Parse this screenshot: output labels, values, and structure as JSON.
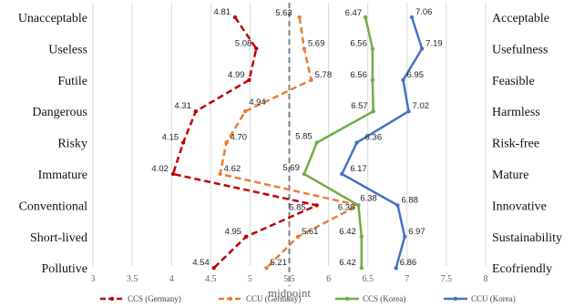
{
  "chart_data": {
    "type": "line",
    "orientation": "horizontal-values",
    "left_categories": [
      "Unacceptable",
      "Useless",
      "Futile",
      "Dangerous",
      "Risky",
      "Immature",
      "Conventional",
      "Short-lived",
      "Pollutive"
    ],
    "right_categories": [
      "Acceptable",
      "Usefulness",
      "Feasible",
      "Harmless",
      "Risk-free",
      "Mature",
      "Innovative",
      "Sustainability",
      "Ecofriendly"
    ],
    "xlim": [
      3,
      8
    ],
    "xticks": [
      "3",
      "3.5",
      "4",
      "4.5",
      "5",
      "5.5",
      "6",
      "6.5",
      "7",
      "7.5",
      "8"
    ],
    "midpoint": {
      "value": 5.5,
      "label": "midpoint"
    },
    "grid": "vertical",
    "legend_position": "bottom",
    "series": [
      {
        "name": "CCS (Germany)",
        "color": "#c00000",
        "dash": "dashed",
        "values": [
          4.81,
          5.08,
          4.99,
          4.31,
          4.15,
          4.02,
          5.85,
          4.95,
          4.54
        ],
        "labels": [
          "4.81",
          "5.08",
          "4.99",
          "4.31",
          "4.15",
          "4.02",
          "5.85",
          "4.95",
          "4.54"
        ]
      },
      {
        "name": "CCU (Germany)",
        "color": "#ed7d31",
        "dash": "dashed",
        "values": [
          5.63,
          5.69,
          5.78,
          4.94,
          4.7,
          4.62,
          6.38,
          5.61,
          5.21
        ],
        "labels": [
          "5.63",
          "5.69",
          "5.78",
          "4.94",
          "4.70",
          "4.62",
          "6.38",
          "5.61",
          "5.21"
        ]
      },
      {
        "name": "CCS (Korea)",
        "color": "#70ad47",
        "dash": "solid",
        "values": [
          6.47,
          6.56,
          6.56,
          6.57,
          5.85,
          5.69,
          6.38,
          6.42,
          6.42
        ],
        "labels": [
          "6.47",
          "6.56",
          "6.56",
          "6.57",
          "5.85",
          "5.69",
          "6.38",
          "6.42",
          "6.42"
        ]
      },
      {
        "name": "CCU (Korea)",
        "color": "#4472c4",
        "dash": "solid",
        "values": [
          7.06,
          7.19,
          6.95,
          7.02,
          6.36,
          6.17,
          6.88,
          6.97,
          6.86
        ],
        "labels": [
          "7.06",
          "7.19",
          "6.95",
          "7.02",
          "6.36",
          "6.17",
          "6.88",
          "6.97",
          "6.86"
        ]
      }
    ]
  }
}
